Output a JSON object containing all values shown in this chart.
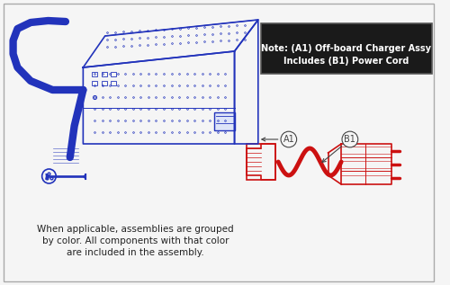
{
  "bg_color": "#f5f5f5",
  "border_color": "#aaaaaa",
  "note_bg": "#1a1a1a",
  "note_text_color": "#ffffff",
  "note_line1": "Note: (A1) Off-board Charger Assy",
  "note_line2": "Includes (B1) Power Cord",
  "note_fontsize": 7.0,
  "charger_color": "#2233bb",
  "cord_color": "#cc1111",
  "label_color": "#444444",
  "body_line1": "When applicable, assemblies are grouped",
  "body_line2": "by color. All components with that color",
  "body_line3": "are included in the assembly.",
  "body_fontsize": 7.5,
  "a1_label": "A1",
  "b1_label": "B1"
}
